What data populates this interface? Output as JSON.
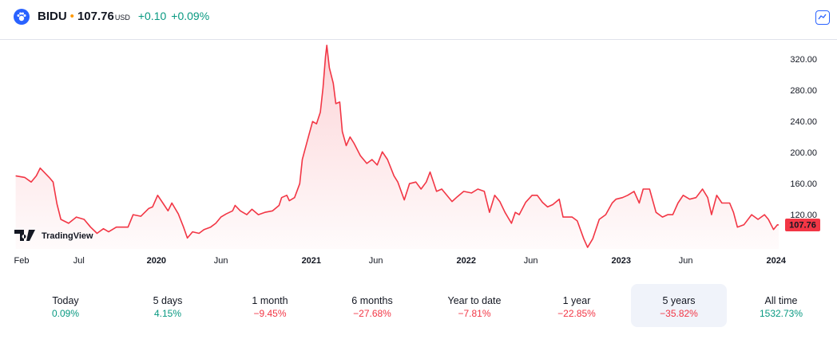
{
  "header": {
    "symbol": "BIDU",
    "price": "107.76",
    "currency": "USD",
    "change": "+0.10",
    "change_pct": "+0.09%",
    "change_color": "#089981"
  },
  "watermark": "TradingView",
  "chart_data": {
    "type": "area",
    "color": "#f23645",
    "grid": false,
    "x": [
      1.1,
      1.8,
      2.3,
      2.7,
      3.0,
      3.7,
      4.0,
      4.3,
      4.6,
      5.2,
      5.8,
      6.4,
      6.9,
      7.4,
      7.9,
      8.3,
      8.9,
      9.8,
      10.2,
      10.8,
      11.4,
      11.7,
      12.1,
      12.5,
      12.9,
      13.2,
      13.7,
      14.1,
      14.4,
      14.8,
      15.3,
      15.7,
      16.2,
      16.6,
      17.0,
      17.4,
      17.9,
      18.1,
      18.5,
      19.0,
      19.4,
      19.9,
      20.4,
      21.0,
      21.5,
      21.7,
      22.1,
      22.3,
      22.7,
      23.1,
      23.3,
      23.8,
      24.1,
      24.4,
      24.7,
      24.9,
      25.1,
      25.2,
      25.4,
      25.7,
      25.9,
      26.2,
      26.4,
      26.7,
      27.0,
      27.3,
      27.8,
      28.3,
      28.7,
      29.1,
      29.5,
      29.9,
      30.4,
      30.7,
      31.2,
      31.6,
      32.1,
      32.5,
      32.9,
      33.2,
      33.7,
      34.1,
      34.5,
      34.9,
      35.3,
      35.8,
      36.4,
      36.9,
      37.4,
      37.8,
      38.2,
      38.6,
      39.0,
      39.5,
      39.8,
      40.1,
      40.6,
      41.1,
      41.5,
      41.9,
      42.3,
      42.7,
      43.2,
      43.5,
      44.2,
      44.6,
      45.1,
      45.4,
      45.8,
      46.3,
      46.8,
      47.3,
      47.6,
      48.1,
      48.5,
      49.0,
      49.4,
      49.7,
      50.2,
      50.7,
      51.2,
      51.6,
      52.0,
      52.4,
      52.8,
      53.3,
      53.8,
      54.3,
      54.7,
      55.0,
      55.4,
      55.8,
      56.4,
      56.7,
      57.0,
      57.5,
      58.1,
      58.6,
      59.1,
      59.4,
      59.8,
      60.1,
      60.2
    ],
    "values": [
      171,
      169,
      163,
      171,
      181,
      169,
      163,
      135,
      115,
      110,
      118,
      115,
      105,
      97,
      103,
      99,
      105,
      105,
      121,
      119,
      129,
      131,
      146,
      136,
      126,
      136,
      122,
      105,
      91,
      99,
      97,
      102,
      105,
      110,
      118,
      122,
      126,
      133,
      126,
      121,
      128,
      121,
      124,
      126,
      133,
      143,
      146,
      139,
      143,
      161,
      192,
      223,
      241,
      238,
      253,
      284,
      325,
      339,
      310,
      290,
      264,
      266,
      228,
      210,
      221,
      213,
      197,
      187,
      192,
      185,
      202,
      192,
      171,
      163,
      140,
      161,
      163,
      154,
      163,
      176,
      151,
      154,
      146,
      138,
      144,
      151,
      149,
      154,
      151,
      124,
      146,
      138,
      124,
      110,
      124,
      121,
      137,
      146,
      146,
      137,
      131,
      134,
      141,
      118,
      118,
      113,
      90,
      79,
      90,
      115,
      121,
      136,
      141,
      143,
      146,
      151,
      136,
      154,
      154,
      124,
      118,
      121,
      121,
      136,
      146,
      141,
      143,
      154,
      143,
      121,
      146,
      136,
      136,
      124,
      105,
      108,
      121,
      115,
      121,
      115,
      102,
      108,
      107.76
    ],
    "xlim": [
      1,
      60.2
    ],
    "ylim": [
      77,
      346
    ],
    "xticks": [
      {
        "value": 1,
        "label": "Feb"
      },
      {
        "value": 6,
        "label": "Jul"
      },
      {
        "value": 12,
        "label": "2020"
      },
      {
        "value": 17,
        "label": "Jun"
      },
      {
        "value": 24,
        "label": "2021"
      },
      {
        "value": 29,
        "label": "Jun"
      },
      {
        "value": 36,
        "label": "2022"
      },
      {
        "value": 41,
        "label": "Jun"
      },
      {
        "value": 48,
        "label": "2023"
      },
      {
        "value": 53,
        "label": "Jun"
      },
      {
        "value": 60,
        "label": "2024"
      }
    ],
    "yticks": [
      {
        "value": 120,
        "label": "120.00"
      },
      {
        "value": 160,
        "label": "160.00"
      },
      {
        "value": 200,
        "label": "200.00"
      },
      {
        "value": 240,
        "label": "240.00"
      },
      {
        "value": 280,
        "label": "280.00"
      },
      {
        "value": 320,
        "label": "320.00"
      }
    ]
  },
  "periods": [
    {
      "label": "Today",
      "value": "0.09%",
      "color": "#089981"
    },
    {
      "label": "5 days",
      "value": "4.15%",
      "color": "#089981"
    },
    {
      "label": "1 month",
      "value": "−9.45%",
      "color": "#f23645"
    },
    {
      "label": "6 months",
      "value": "−27.68%",
      "color": "#f23645"
    },
    {
      "label": "Year to date",
      "value": "−7.81%",
      "color": "#f23645"
    },
    {
      "label": "1 year",
      "value": "−22.85%",
      "color": "#f23645"
    },
    {
      "label": "5 years",
      "value": "−35.82%",
      "color": "#f23645"
    },
    {
      "label": "All time",
      "value": "1532.73%",
      "color": "#089981"
    }
  ],
  "selected_period": 6
}
